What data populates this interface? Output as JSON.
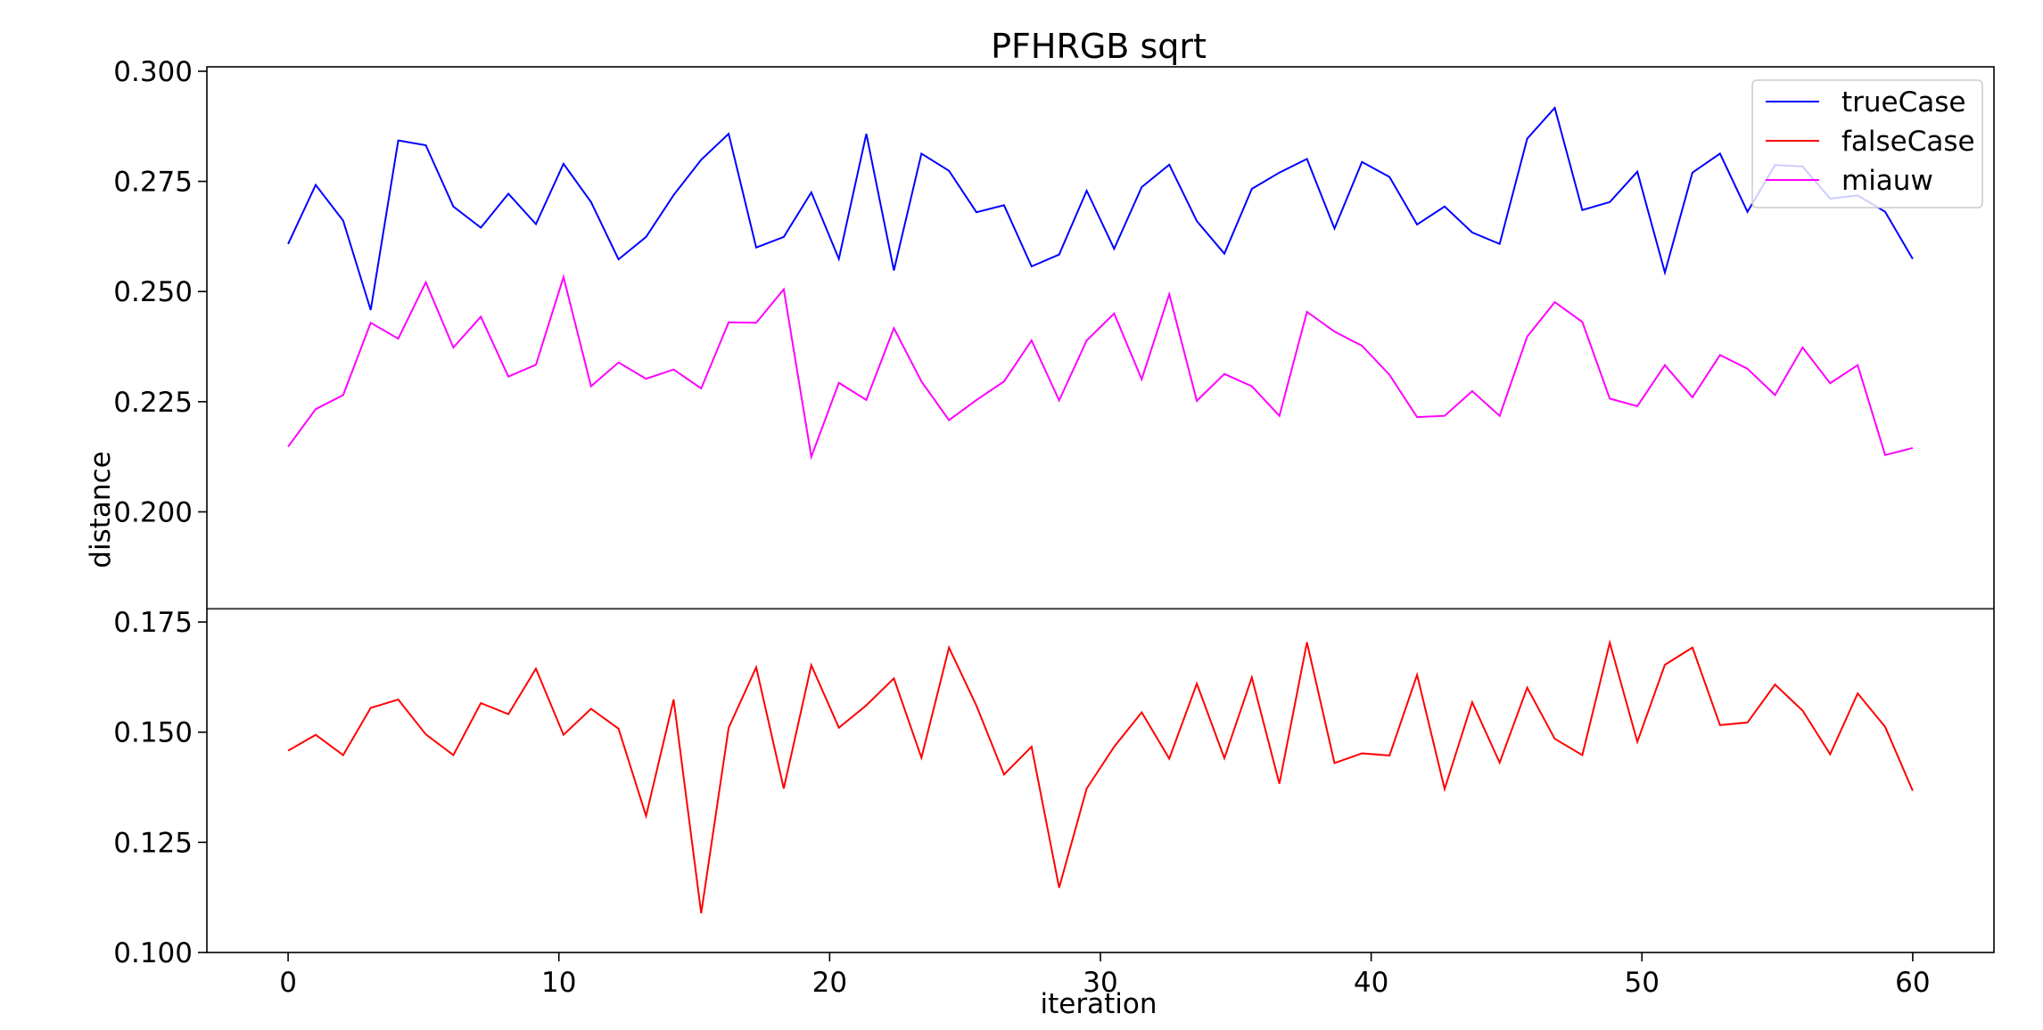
{
  "chart_data": {
    "type": "line",
    "title": "PFHRGB sqrt",
    "xlabel": "iteration",
    "ylabel": "distance",
    "xlim": [
      -3,
      63
    ],
    "ylim": [
      0.1,
      0.301
    ],
    "xticks": [
      0,
      10,
      20,
      30,
      40,
      50,
      60
    ],
    "xtick_labels": [
      "0",
      "10",
      "20",
      "30",
      "40",
      "50",
      "60"
    ],
    "yticks": [
      0.1,
      0.125,
      0.15,
      0.175,
      0.2,
      0.225,
      0.25,
      0.275,
      0.3
    ],
    "ytick_labels": [
      "0.100",
      "0.125",
      "0.150",
      "0.175",
      "0.200",
      "0.225",
      "0.250",
      "0.275",
      "0.300"
    ],
    "hline": 0.178,
    "grid": false,
    "legend_position": "top-right",
    "series": [
      {
        "name": "trueCase",
        "color": "#0000ff",
        "values": [
          0.2608,
          0.2742,
          0.2661,
          0.2458,
          0.2843,
          0.2832,
          0.2693,
          0.2645,
          0.2722,
          0.2653,
          0.279,
          0.2703,
          0.2573,
          0.2624,
          0.2719,
          0.2799,
          0.2858,
          0.26,
          0.2624,
          0.2725,
          0.2574,
          0.2858,
          0.2548,
          0.2813,
          0.2774,
          0.268,
          0.2696,
          0.2557,
          0.2584,
          0.2729,
          0.2597,
          0.2737,
          0.2788,
          0.266,
          0.2586,
          0.2733,
          0.277,
          0.2801,
          0.2643,
          0.2794,
          0.276,
          0.2652,
          0.2693,
          0.2634,
          0.2608,
          0.2847,
          0.2917,
          0.2685,
          0.2703,
          0.2772,
          0.2543,
          0.277,
          0.2813,
          0.2681,
          0.2787,
          0.2784,
          0.2711,
          0.2718,
          0.2681,
          0.2574
        ]
      },
      {
        "name": "falseCase",
        "color": "#ff0000",
        "values": [
          0.1458,
          0.1494,
          0.1448,
          0.1555,
          0.1574,
          0.1495,
          0.1448,
          0.1566,
          0.1541,
          0.1644,
          0.1494,
          0.1553,
          0.1508,
          0.131,
          0.1574,
          0.1089,
          0.151,
          0.1647,
          0.1372,
          0.1652,
          0.151,
          0.1561,
          0.1622,
          0.1442,
          0.1692,
          0.156,
          0.1404,
          0.1467,
          0.1147,
          0.1372,
          0.1467,
          0.1545,
          0.144,
          0.161,
          0.1441,
          0.1624,
          0.1383,
          0.1704,
          0.143,
          0.1452,
          0.1447,
          0.163,
          0.1371,
          0.1568,
          0.1431,
          0.1601,
          0.1485,
          0.1448,
          0.1703,
          0.1478,
          0.1653,
          0.1692,
          0.1516,
          0.1522,
          0.1608,
          0.1549,
          0.145,
          0.1588,
          0.1512,
          0.1367
        ]
      },
      {
        "name": "miauw",
        "color": "#ff00ff",
        "values": [
          0.2148,
          0.2233,
          0.2265,
          0.2429,
          0.2393,
          0.2521,
          0.2373,
          0.2443,
          0.2307,
          0.2334,
          0.2533,
          0.2285,
          0.2339,
          0.2302,
          0.2323,
          0.228,
          0.243,
          0.2429,
          0.2505,
          0.2125,
          0.2293,
          0.2254,
          0.2417,
          0.2296,
          0.2208,
          0.2254,
          0.2296,
          0.2389,
          0.2253,
          0.2389,
          0.245,
          0.2301,
          0.2494,
          0.2252,
          0.2313,
          0.2285,
          0.2218,
          0.2454,
          0.2409,
          0.2377,
          0.2311,
          0.2215,
          0.2218,
          0.2274,
          0.2218,
          0.2398,
          0.2476,
          0.2431,
          0.2257,
          0.224,
          0.2333,
          0.226,
          0.2356,
          0.2325,
          0.2265,
          0.2373,
          0.2292,
          0.2333,
          0.2129,
          0.2145
        ]
      }
    ]
  }
}
